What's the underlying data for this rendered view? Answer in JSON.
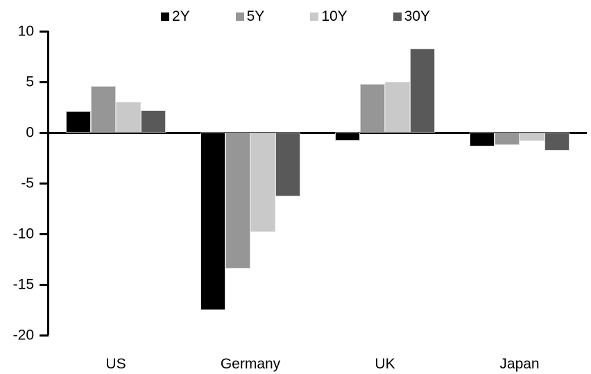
{
  "chart_data": {
    "type": "bar",
    "title": "",
    "xlabel": "",
    "ylabel": "",
    "categories": [
      "US",
      "Germany",
      "UK",
      "Japan"
    ],
    "series": [
      {
        "name": "2Y",
        "color": "#000000",
        "values": [
          2.1,
          -17.5,
          -0.8,
          -1.4
        ]
      },
      {
        "name": "5Y",
        "color": "#969696",
        "values": [
          4.6,
          -13.4,
          4.8,
          -1.2
        ]
      },
      {
        "name": "10Y",
        "color": "#c9c9c9",
        "values": [
          3.0,
          -9.8,
          5.0,
          -0.8
        ]
      },
      {
        "name": "30Y",
        "color": "#595959",
        "values": [
          2.2,
          -6.3,
          8.3,
          -1.8
        ]
      }
    ],
    "ylim": [
      -20,
      10
    ],
    "ytick_interval": 5,
    "ytick_labels": [
      "10",
      "5",
      "0",
      "-5",
      "-10",
      "-15",
      "-20"
    ],
    "grid": false,
    "legend_position": "top",
    "axis_color": "#000000",
    "bar_outline_color": "#d9d9d9"
  }
}
